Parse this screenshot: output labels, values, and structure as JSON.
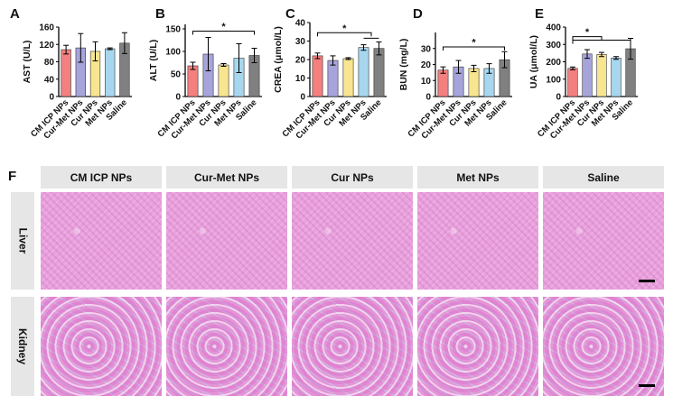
{
  "colors": {
    "CM ICP NPs": "#f47f7f",
    "Cur-Met NPs": "#a7a4dc",
    "Cur NPs": "#f8e58f",
    "Met NPs": "#a7d7ef",
    "Saline": "#808080"
  },
  "panels": {
    "A": "A",
    "B": "B",
    "C": "C",
    "D": "D",
    "E": "E",
    "F": "F"
  },
  "chart_data": [
    {
      "type": "bar",
      "panel": "A",
      "categories": [
        "CM ICP NPs",
        "Cur-Met NPs",
        "Cur NPs",
        "Met NPs",
        "Saline"
      ],
      "values": [
        108,
        112,
        104,
        110,
        123
      ],
      "errors": [
        10,
        33,
        22,
        2,
        24
      ],
      "title": "",
      "ylabel": "AST (U/L)",
      "ylim": [
        0,
        160
      ],
      "yticks": [
        0,
        40,
        80,
        120,
        160
      ],
      "significance": []
    },
    {
      "type": "bar",
      "panel": "B",
      "categories": [
        "CM ICP NPs",
        "Cur-Met NPs",
        "Cur NPs",
        "Met NPs",
        "Saline"
      ],
      "values": [
        68,
        94,
        70,
        85,
        91
      ],
      "errors": [
        8,
        37,
        3,
        32,
        16
      ],
      "title": "",
      "ylabel": "ALT (U/L)",
      "ylim": [
        0,
        160
      ],
      "yticks": [
        0,
        50,
        100,
        150
      ],
      "significance": [
        {
          "from": 0,
          "to": 4,
          "level": 145,
          "label": "*"
        }
      ]
    },
    {
      "type": "bar",
      "panel": "C",
      "categories": [
        "CM ICP NPs",
        "Cur-Met NPs",
        "Cur NPs",
        "Met NPs",
        "Saline"
      ],
      "values": [
        22,
        19.5,
        20.5,
        26.5,
        26
      ],
      "errors": [
        1.5,
        2.5,
        0.5,
        1.5,
        3.5
      ],
      "title": "",
      "ylabel": "CREA (μmol/L)",
      "ylim": [
        0,
        40
      ],
      "yticks": [
        0,
        10,
        20,
        30,
        40
      ],
      "significance": [
        {
          "from": 0,
          "to": 3.5,
          "level": 34.5,
          "label": "*",
          "subFrom": 3,
          "subTo": 4,
          "subLevel": 31.5
        }
      ]
    },
    {
      "type": "bar",
      "panel": "D",
      "categories": [
        "CM ICP NPs",
        "Cur-Met NPs",
        "Cur NPs",
        "Met NPs",
        "Saline"
      ],
      "values": [
        16.5,
        18.5,
        17.5,
        17.5,
        23
      ],
      "errors": [
        2,
        4,
        2,
        3,
        5
      ],
      "title": "",
      "ylabel": "BUN (mg/L)",
      "ylim": [
        0,
        40
      ],
      "yticks": [
        0,
        10,
        20,
        30
      ],
      "significance": [
        {
          "from": 0,
          "to": 4,
          "level": 31,
          "label": "*"
        }
      ]
    },
    {
      "type": "bar",
      "panel": "E",
      "categories": [
        "CM ICP NPs",
        "Cur-Met NPs",
        "Cur NPs",
        "Met NPs",
        "Saline"
      ],
      "values": [
        162,
        245,
        242,
        222,
        275
      ],
      "errors": [
        8,
        25,
        12,
        8,
        60
      ],
      "title": "",
      "ylabel": "UA (μmol/L)",
      "ylim": [
        0,
        400
      ],
      "yticks": [
        0,
        100,
        200,
        300,
        400
      ],
      "significance": [
        {
          "from": 0,
          "to": 2,
          "level": 345,
          "label": "*"
        },
        {
          "from": 0,
          "to": 4,
          "level": 325,
          "label": ""
        }
      ]
    }
  ],
  "histology": {
    "columns": [
      "CM ICP NPs",
      "Cur-Met NPs",
      "Cur NPs",
      "Met NPs",
      "Saline"
    ],
    "rows": [
      "Liver",
      "Kidney"
    ]
  }
}
